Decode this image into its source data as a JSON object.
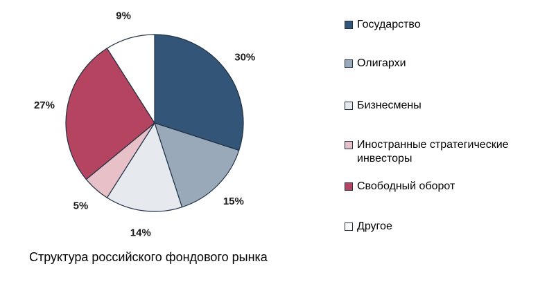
{
  "chart_data": {
    "type": "pie",
    "title": "Структура российского фондового рынка",
    "slices": [
      {
        "name": "Государство",
        "value": 30,
        "label": "30%",
        "color": "#335577"
      },
      {
        "name": "Олигархи",
        "value": 15,
        "label": "15%",
        "color": "#9aa9ba"
      },
      {
        "name": "Бизнесмены",
        "value": 14,
        "label": "14%",
        "color": "#e6eaef"
      },
      {
        "name": "Иностранные стратегические инвесторы",
        "value": 5,
        "label": "5%",
        "color": "#e8c0c8"
      },
      {
        "name": "Свободный оборот",
        "value": 27,
        "label": "27%",
        "color": "#b44460"
      },
      {
        "name": "Другое",
        "value": 9,
        "label": "9%",
        "color": "#ffffff"
      }
    ],
    "legend_position": "right"
  }
}
